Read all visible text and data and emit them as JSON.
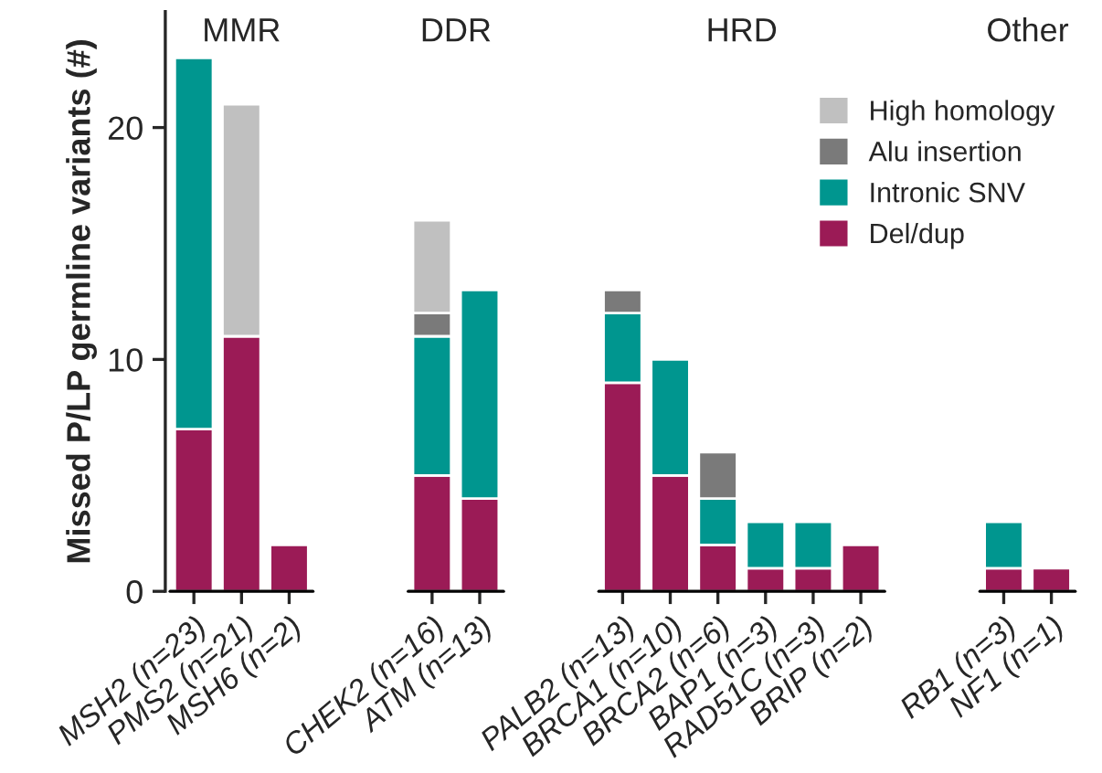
{
  "chart_data": {
    "type": "bar",
    "stacked": true,
    "ylabel": "Missed P/LP germline variants (#)",
    "categories": [
      "MSH2 (n=23)",
      "PMS2 (n=21)",
      "MSH6 (n=2)",
      null,
      null,
      "CHEK2 (n=16)",
      "ATM (n=13)",
      null,
      null,
      "PALB2 (n=13)",
      "BRCA1 (n=10)",
      "BRCA2 (n=6)",
      "BAP1 (n=3)",
      "RAD51C (n=3)",
      "BRIP (n=2)",
      null,
      null,
      "RB1 (n=3)",
      "NF1 (n=1)"
    ],
    "series": [
      {
        "name": "Del/dup",
        "color": "#9b1b56",
        "values": [
          7,
          11,
          2,
          null,
          null,
          5,
          4,
          null,
          null,
          9,
          5,
          2,
          1,
          1,
          2,
          null,
          null,
          1,
          1
        ]
      },
      {
        "name": "Intronic SNV",
        "color": "#00968f",
        "values": [
          16,
          0,
          0,
          null,
          null,
          6,
          9,
          null,
          null,
          3,
          5,
          2,
          2,
          2,
          0,
          null,
          null,
          2,
          0
        ]
      },
      {
        "name": "Alu insertion",
        "color": "#7a7a7a",
        "values": [
          0,
          0,
          0,
          null,
          null,
          1,
          0,
          null,
          null,
          1,
          0,
          2,
          0,
          0,
          0,
          null,
          null,
          0,
          0
        ]
      },
      {
        "name": "High homology",
        "color": "#c0c0c0",
        "values": [
          0,
          10,
          0,
          null,
          null,
          4,
          0,
          null,
          null,
          0,
          0,
          0,
          0,
          0,
          0,
          null,
          null,
          0,
          0
        ]
      }
    ],
    "annotations": [
      "MMR",
      "DDR",
      "HRD",
      "Other"
    ],
    "ylim": [
      0,
      25
    ],
    "yticks": [
      0,
      10,
      20
    ],
    "grid": false,
    "legend": "right"
  }
}
